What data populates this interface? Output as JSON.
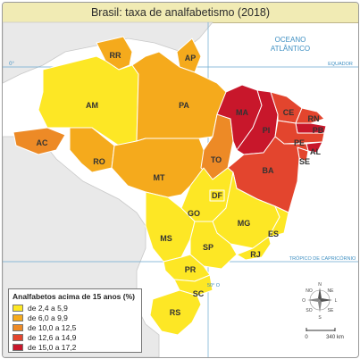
{
  "title": "Brasil: taxa de analfabetismo (2018)",
  "ocean": {
    "line1": "OCEANO",
    "line2": "ATLÂNTICO"
  },
  "reference_lines": {
    "equator": "EQUADOR",
    "tropic": "TRÓPICO DE CAPRICÓRNIO"
  },
  "meridian_labels": {
    "equator_lon": "0°",
    "tropic_lon": "50° O"
  },
  "states": [
    {
      "code": "RR",
      "class": 1
    },
    {
      "code": "AP",
      "class": 1
    },
    {
      "code": "AM",
      "class": 0
    },
    {
      "code": "PA",
      "class": 1
    },
    {
      "code": "AC",
      "class": 2
    },
    {
      "code": "RO",
      "class": 1
    },
    {
      "code": "MT",
      "class": 1
    },
    {
      "code": "TO",
      "class": 2
    },
    {
      "code": "MA",
      "class": 4
    },
    {
      "code": "PI",
      "class": 4
    },
    {
      "code": "CE",
      "class": 3
    },
    {
      "code": "RN",
      "class": 3
    },
    {
      "code": "PB",
      "class": 4
    },
    {
      "code": "PE",
      "class": 3
    },
    {
      "code": "AL",
      "class": 4
    },
    {
      "code": "SE",
      "class": 3
    },
    {
      "code": "BA",
      "class": 3
    },
    {
      "code": "GO",
      "class": 0
    },
    {
      "code": "DF",
      "class": 0
    },
    {
      "code": "MG",
      "class": 0
    },
    {
      "code": "ES",
      "class": 0
    },
    {
      "code": "MS",
      "class": 0
    },
    {
      "code": "SP",
      "class": 0
    },
    {
      "code": "RJ",
      "class": 0
    },
    {
      "code": "PR",
      "class": 0
    },
    {
      "code": "SC",
      "class": 0
    },
    {
      "code": "RS",
      "class": 0
    }
  ],
  "legend": {
    "title": "Analfabetos acima de 15 anos (%)",
    "items": [
      {
        "label": "de 2,4 a 5,9",
        "color": "#fde725"
      },
      {
        "label": "de 6,0 a 9,9",
        "color": "#f5aa1c"
      },
      {
        "label": "de 10,0 a 12,5",
        "color": "#ed8a26"
      },
      {
        "label": "de 12,6 a 14,9",
        "color": "#e3452e"
      },
      {
        "label": "de 15,0 a 17,2",
        "color": "#c8172b"
      }
    ]
  },
  "compass": {
    "n": "N",
    "s": "S",
    "e": "L",
    "w": "O",
    "ne": "NE",
    "no": "NO",
    "se": "SE",
    "so": "SO"
  },
  "scale": {
    "start": "0",
    "end": "340 km"
  },
  "colors": {
    "sea": "#ffffff",
    "neighbors": "#e9e9e9",
    "coast_water": "#cfe7f3"
  }
}
